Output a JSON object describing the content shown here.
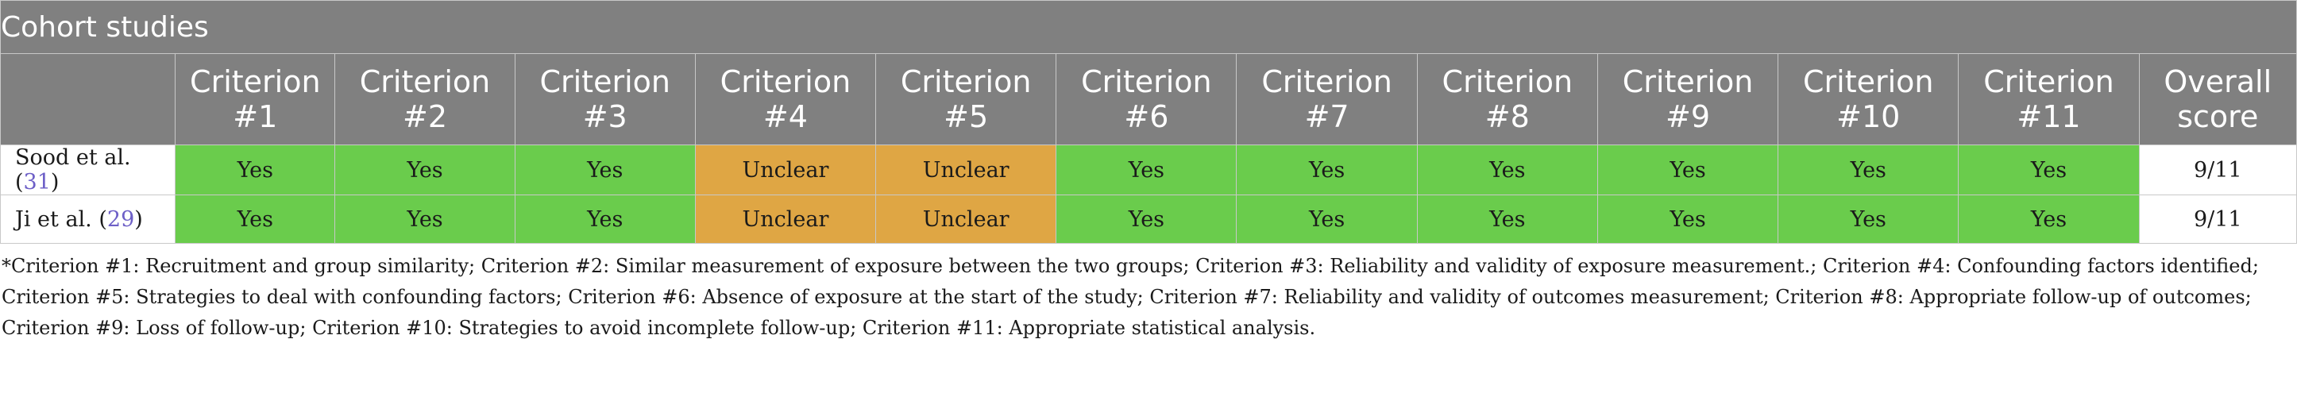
{
  "table": {
    "title": "Cohort studies",
    "columns": [
      {
        "line1": "Criterion",
        "line2": "#1"
      },
      {
        "line1": "Criterion",
        "line2": "#2"
      },
      {
        "line1": "Criterion",
        "line2": "#3"
      },
      {
        "line1": "Criterion",
        "line2": "#4"
      },
      {
        "line1": "Criterion",
        "line2": "#5"
      },
      {
        "line1": "Criterion",
        "line2": "#6"
      },
      {
        "line1": "Criterion",
        "line2": "#7"
      },
      {
        "line1": "Criterion",
        "line2": "#8"
      },
      {
        "line1": "Criterion",
        "line2": "#9"
      },
      {
        "line1": "Criterion",
        "line2": "#10"
      },
      {
        "line1": "Criterion",
        "line2": "#11"
      },
      {
        "line1": "Overall",
        "line2": "score"
      }
    ],
    "rows": [
      {
        "study": "Sood et al. (",
        "ref": "31",
        "close": ")",
        "cells": [
          "Yes",
          "Yes",
          "Yes",
          "Unclear",
          "Unclear",
          "Yes",
          "Yes",
          "Yes",
          "Yes",
          "Yes",
          "Yes"
        ],
        "score": "9/11"
      },
      {
        "study": "Ji et al. (",
        "ref": "29",
        "close": ")",
        "cells": [
          "Yes",
          "Yes",
          "Yes",
          "Unclear",
          "Unclear",
          "Yes",
          "Yes",
          "Yes",
          "Yes",
          "Yes",
          "Yes"
        ],
        "score": "9/11"
      }
    ]
  },
  "colors": {
    "header_bg": "#808080",
    "yes": "#6acc4c",
    "unclear": "#dfa644",
    "reference_link": "#6d5fc7"
  },
  "footnote": "*Criterion #1: Recruitment and group similarity; Criterion #2: Similar measurement of exposure between the two groups; Criterion #3: Reliability and validity of exposure measurement.; Criterion #4: Confounding factors identified; Criterion #5: Strategies to deal with confounding factors; Criterion #6: Absence of exposure at the start of the study; Criterion #7: Reliability and validity of outcomes measurement; Criterion #8: Appropriate follow-up of outcomes; Criterion #9: Loss of follow-up; Criterion #10: Strategies to avoid incomplete follow-up; Criterion #11: Appropriate statistical analysis."
}
